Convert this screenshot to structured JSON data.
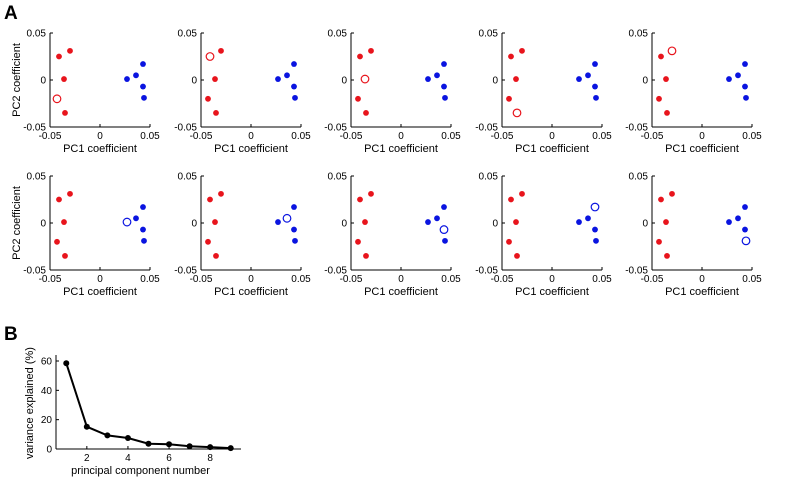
{
  "panel_labels": {
    "a": "A",
    "b": "B"
  },
  "colors": {
    "group1": "#e8141c",
    "group2": "#0a14e0",
    "line": "#000000",
    "axis": "#000000"
  },
  "chart_data": [
    {
      "type": "scatter",
      "panel": "A",
      "layout": "2 rows x 5 columns small multiples",
      "xlabel": "PC1 coefficient",
      "ylabel": "PC2 coefficient",
      "xlim": [
        -0.05,
        0.05
      ],
      "ylim": [
        -0.05,
        0.05
      ],
      "xticks": [
        -0.05,
        0,
        0.05
      ],
      "xtick_labels": [
        "-0.05",
        "0",
        "0.05"
      ],
      "yticks": [
        -0.05,
        0,
        0.05
      ],
      "ytick_labels": [
        "-0.05",
        "0",
        "0.05"
      ],
      "series": [
        {
          "name": "group1",
          "color": "#e8141c",
          "points": [
            [
              -0.03,
              0.031
            ],
            [
              -0.041,
              0.025
            ],
            [
              -0.036,
              0.001
            ],
            [
              -0.043,
              -0.02
            ],
            [
              -0.035,
              -0.035
            ]
          ]
        },
        {
          "name": "group2",
          "color": "#0a14e0",
          "points": [
            [
              0.043,
              0.017
            ],
            [
              0.036,
              0.005
            ],
            [
              0.027,
              0.001
            ],
            [
              0.043,
              -0.007
            ],
            [
              0.044,
              -0.019
            ]
          ]
        }
      ],
      "subplots": [
        {
          "highlight": {
            "series": "group1",
            "index": 3
          }
        },
        {
          "highlight": {
            "series": "group1",
            "index": 1
          }
        },
        {
          "highlight": {
            "series": "group1",
            "index": 2
          }
        },
        {
          "highlight": {
            "series": "group1",
            "index": 4
          }
        },
        {
          "highlight": {
            "series": "group1",
            "index": 0
          }
        },
        {
          "highlight": {
            "series": "group2",
            "index": 2
          }
        },
        {
          "highlight": {
            "series": "group2",
            "index": 1
          }
        },
        {
          "highlight": {
            "series": "group2",
            "index": 3
          }
        },
        {
          "highlight": {
            "series": "group2",
            "index": 0
          }
        },
        {
          "highlight": {
            "series": "group2",
            "index": 4
          }
        }
      ],
      "highlight_style": "open circle"
    },
    {
      "type": "line",
      "panel": "B",
      "title": "",
      "xlabel": "principal component number",
      "ylabel": "variance explained (%)",
      "x": [
        1,
        2,
        3,
        4,
        5,
        6,
        7,
        8,
        9
      ],
      "y": [
        58.5,
        15.2,
        9.3,
        7.5,
        3.6,
        3.2,
        1.9,
        1.3,
        0.6
      ],
      "xlim": [
        0.5,
        9.5
      ],
      "ylim": [
        0,
        60
      ],
      "xticks": [
        2,
        4,
        6,
        8
      ],
      "xtick_labels": [
        "2",
        "4",
        "6",
        "8"
      ],
      "yticks": [
        0,
        20,
        40,
        60
      ],
      "ytick_labels": [
        "0",
        "20",
        "40",
        "60"
      ],
      "marker": "filled circle",
      "color": "#000000"
    }
  ]
}
